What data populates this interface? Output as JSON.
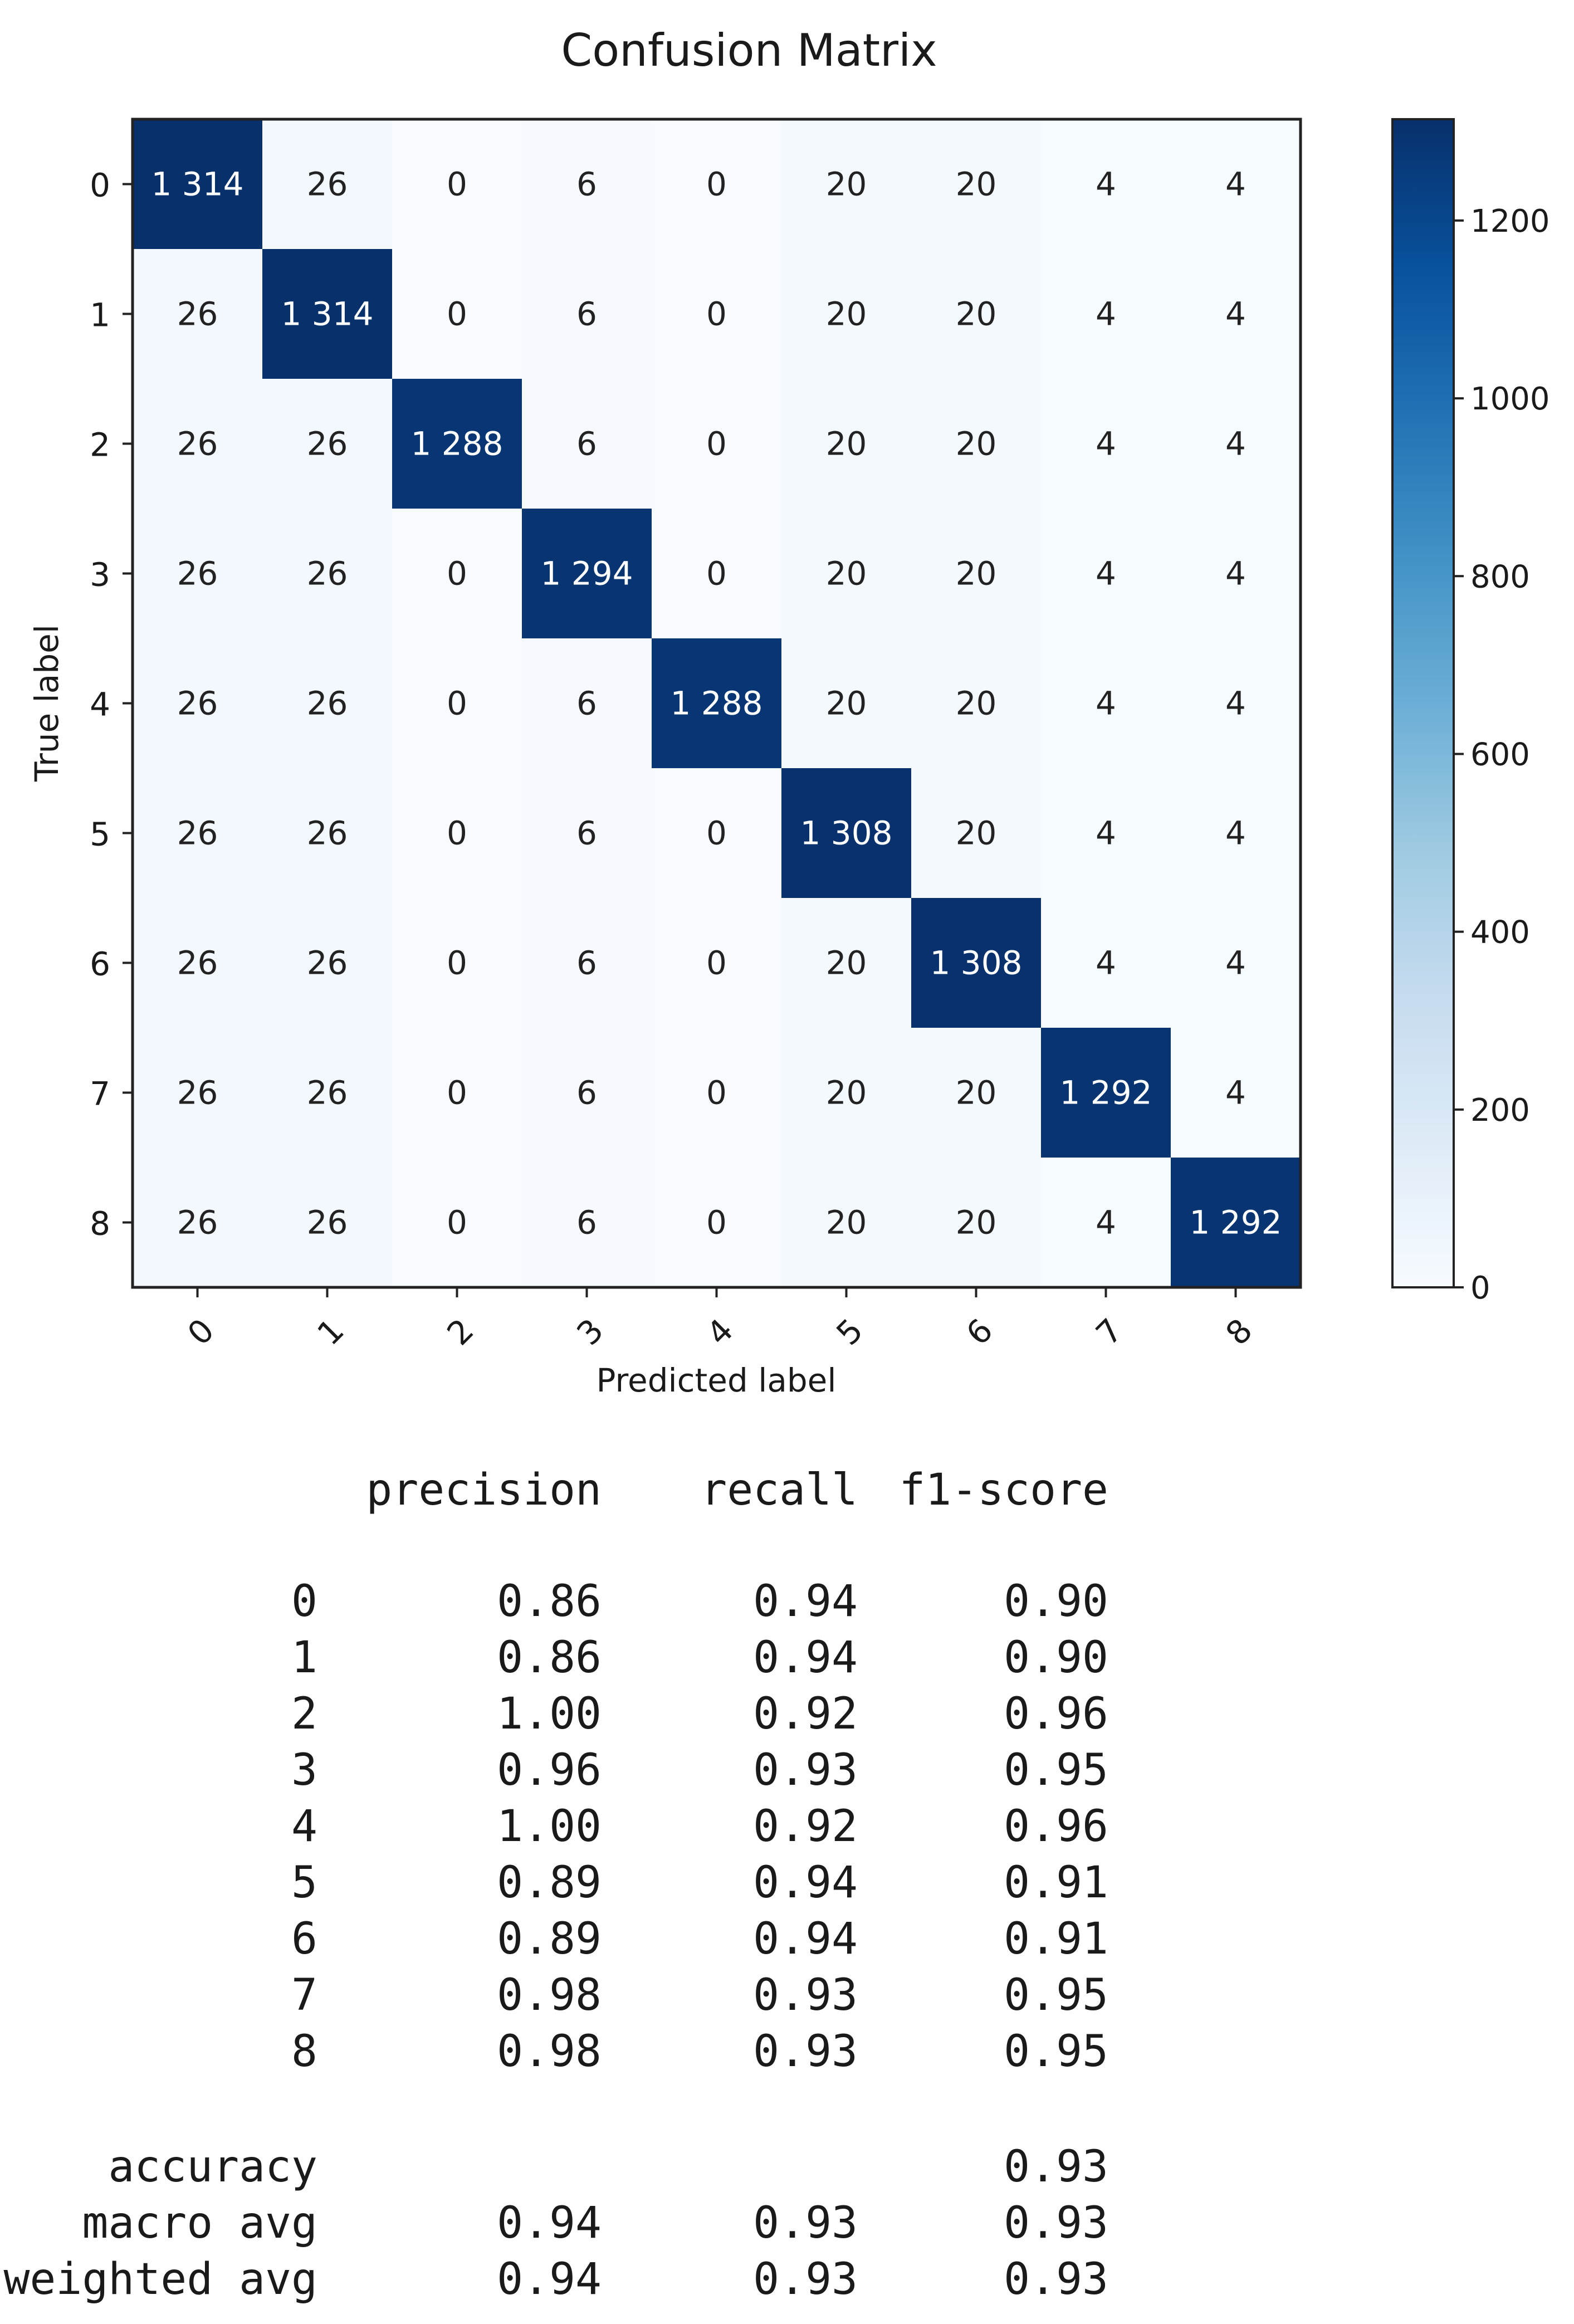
{
  "chart_data": {
    "type": "heatmap",
    "title": "Confusion Matrix",
    "xlabel": "Predicted label",
    "ylabel": "True label",
    "x_categories": [
      "0",
      "1",
      "2",
      "3",
      "4",
      "5",
      "6",
      "7",
      "8"
    ],
    "y_categories": [
      "0",
      "1",
      "2",
      "3",
      "4",
      "5",
      "6",
      "7",
      "8"
    ],
    "cell_labels": [
      [
        "1 314",
        "26",
        "0",
        "6",
        "0",
        "20",
        "20",
        "4",
        "4"
      ],
      [
        "26",
        "1 314",
        "0",
        "6",
        "0",
        "20",
        "20",
        "4",
        "4"
      ],
      [
        "26",
        "26",
        "1 288",
        "6",
        "0",
        "20",
        "20",
        "4",
        "4"
      ],
      [
        "26",
        "26",
        "0",
        "1 294",
        "0",
        "20",
        "20",
        "4",
        "4"
      ],
      [
        "26",
        "26",
        "0",
        "6",
        "1 288",
        "20",
        "20",
        "4",
        "4"
      ],
      [
        "26",
        "26",
        "0",
        "6",
        "0",
        "1 308",
        "20",
        "4",
        "4"
      ],
      [
        "26",
        "26",
        "0",
        "6",
        "0",
        "20",
        "1 308",
        "4",
        "4"
      ],
      [
        "26",
        "26",
        "0",
        "6",
        "0",
        "20",
        "20",
        "1 292",
        "4"
      ],
      [
        "26",
        "26",
        "0",
        "6",
        "0",
        "20",
        "20",
        "4",
        "1 292"
      ]
    ],
    "matrix": [
      [
        1314,
        26,
        0,
        6,
        0,
        20,
        20,
        4,
        4
      ],
      [
        26,
        1314,
        0,
        6,
        0,
        20,
        20,
        4,
        4
      ],
      [
        26,
        26,
        1288,
        6,
        0,
        20,
        20,
        4,
        4
      ],
      [
        26,
        26,
        0,
        1294,
        0,
        20,
        20,
        4,
        4
      ],
      [
        26,
        26,
        0,
        6,
        1288,
        20,
        20,
        4,
        4
      ],
      [
        26,
        26,
        0,
        6,
        0,
        1308,
        20,
        4,
        4
      ],
      [
        26,
        26,
        0,
        6,
        0,
        20,
        1308,
        4,
        4
      ],
      [
        26,
        26,
        0,
        6,
        0,
        20,
        20,
        1292,
        4
      ],
      [
        26,
        26,
        0,
        6,
        0,
        20,
        20,
        4,
        1292
      ]
    ],
    "colormap": "Blues",
    "color_range": [
      0,
      1314
    ],
    "colorbar_ticks": [
      "0",
      "200",
      "400",
      "600",
      "800",
      "1000",
      "1200"
    ],
    "colorbar_tick_values": [
      0,
      200,
      400,
      600,
      800,
      1000,
      1200
    ]
  },
  "report": {
    "headers": [
      "precision",
      "recall",
      "f1-score"
    ],
    "rows": [
      {
        "label": "0",
        "precision": "0.86",
        "recall": "0.94",
        "f1": "0.90"
      },
      {
        "label": "1",
        "precision": "0.86",
        "recall": "0.94",
        "f1": "0.90"
      },
      {
        "label": "2",
        "precision": "1.00",
        "recall": "0.92",
        "f1": "0.96"
      },
      {
        "label": "3",
        "precision": "0.96",
        "recall": "0.93",
        "f1": "0.95"
      },
      {
        "label": "4",
        "precision": "1.00",
        "recall": "0.92",
        "f1": "0.96"
      },
      {
        "label": "5",
        "precision": "0.89",
        "recall": "0.94",
        "f1": "0.91"
      },
      {
        "label": "6",
        "precision": "0.89",
        "recall": "0.94",
        "f1": "0.91"
      },
      {
        "label": "7",
        "precision": "0.98",
        "recall": "0.93",
        "f1": "0.95"
      },
      {
        "label": "8",
        "precision": "0.98",
        "recall": "0.93",
        "f1": "0.95"
      }
    ],
    "summary": [
      {
        "label": "accuracy",
        "precision": "",
        "recall": "",
        "f1": "0.93"
      },
      {
        "label": "macro avg",
        "precision": "0.94",
        "recall": "0.93",
        "f1": "0.93"
      },
      {
        "label": "weighted avg",
        "precision": "0.94",
        "recall": "0.93",
        "f1": "0.93"
      }
    ]
  }
}
